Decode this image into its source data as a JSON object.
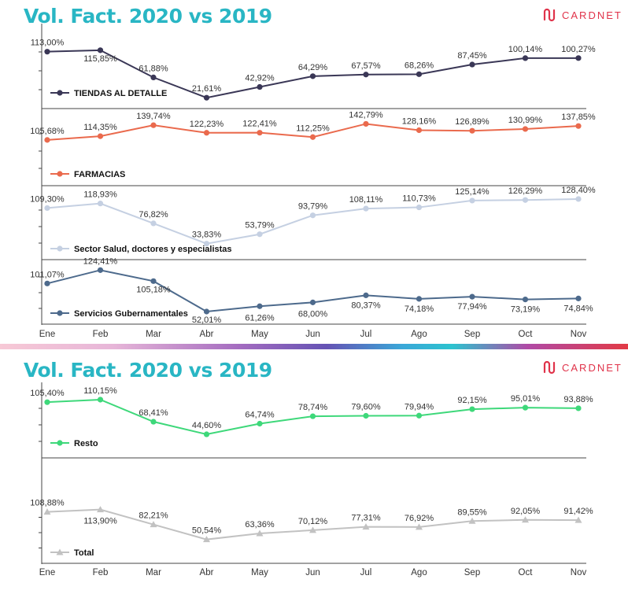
{
  "brand": {
    "name": "CARDNET",
    "color": "#e0334a",
    "title_color": "#29b6c4"
  },
  "chart_data": [
    {
      "type": "line",
      "title": "Vol. Fact. 2020 vs 2019",
      "categories": [
        "Ene",
        "Feb",
        "Mar",
        "Abr",
        "May",
        "Jun",
        "Jul",
        "Ago",
        "Sep",
        "Oct",
        "Nov"
      ],
      "series": [
        {
          "name": "TIENDAS AL DETALLE",
          "color": "#3a3756",
          "marker": "circle",
          "values": [
            113.0,
            115.85,
            61.88,
            21.61,
            42.92,
            64.29,
            67.57,
            68.26,
            87.45,
            100.14,
            100.27
          ],
          "labels": [
            "113,00%",
            "115,85%",
            "61,88%",
            "21,61%",
            "42,92%",
            "64,29%",
            "67,57%",
            "68,26%",
            "87,45%",
            "100,14%",
            "100,27%"
          ]
        },
        {
          "name": "FARMACIAS",
          "color": "#ea6a4d",
          "marker": "circle",
          "values": [
            105.68,
            114.35,
            139.74,
            122.23,
            122.41,
            112.25,
            142.79,
            128.16,
            126.89,
            130.99,
            137.85
          ],
          "labels": [
            "105,68%",
            "114,35%",
            "139,74%",
            "122,23%",
            "122,41%",
            "112,25%",
            "142,79%",
            "128,16%",
            "126,89%",
            "130,99%",
            "137,85%"
          ]
        },
        {
          "name": "Sector Salud, doctores y especialistas",
          "color": "#c5d0e2",
          "marker": "circle",
          "values": [
            109.3,
            118.93,
            76.82,
            33.83,
            53.79,
            93.79,
            108.11,
            110.73,
            125.14,
            126.29,
            128.4
          ],
          "labels": [
            "109,30%",
            "118,93%",
            "76,82%",
            "33,83%",
            "53,79%",
            "93,79%",
            "108,11%",
            "110,73%",
            "125,14%",
            "126,29%",
            "128,40%"
          ]
        },
        {
          "name": "Servicios Gubernamentales",
          "color": "#4d6a8c",
          "marker": "circle",
          "values": [
            101.07,
            124.41,
            105.18,
            52.01,
            61.26,
            68.0,
            80.37,
            74.18,
            77.94,
            73.19,
            74.84
          ],
          "labels": [
            "101,07%",
            "124,41%",
            "105,18%",
            "52,01%",
            "61,26%",
            "68,00%",
            "80,37%",
            "74,18%",
            "77,94%",
            "73,19%",
            "74,84%"
          ]
        }
      ]
    },
    {
      "type": "line",
      "title": "Vol. Fact. 2020 vs 2019",
      "categories": [
        "Ene",
        "Feb",
        "Mar",
        "Abr",
        "May",
        "Jun",
        "Jul",
        "Ago",
        "Sep",
        "Oct",
        "Nov"
      ],
      "series": [
        {
          "name": "Resto",
          "color": "#3ed87a",
          "marker": "circle",
          "values": [
            105.4,
            110.15,
            68.41,
            44.6,
            64.74,
            78.74,
            79.6,
            79.94,
            92.15,
            95.01,
            93.88
          ],
          "labels": [
            "105,40%",
            "110,15%",
            "68,41%",
            "44,60%",
            "64,74%",
            "78,74%",
            "79,60%",
            "79,94%",
            "92,15%",
            "95,01%",
            "93,88%"
          ]
        },
        {
          "name": "Total",
          "color": "#c2c2c2",
          "marker": "triangle",
          "values": [
            108.88,
            113.9,
            82.21,
            50.54,
            63.36,
            70.12,
            77.31,
            76.92,
            89.55,
            92.05,
            91.42
          ],
          "labels": [
            "108,88%",
            "113,90%",
            "82,21%",
            "50,54%",
            "63,36%",
            "70,12%",
            "77,31%",
            "76,92%",
            "89,55%",
            "92,05%",
            "91,42%"
          ]
        }
      ]
    }
  ]
}
